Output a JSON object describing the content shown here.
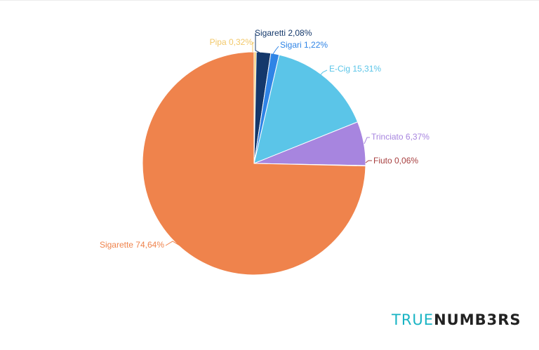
{
  "chart_data": {
    "type": "pie",
    "title": "",
    "start_angle_deg": 0,
    "direction": "clockwise",
    "slices": [
      {
        "label": "Pipa",
        "value": 0.32,
        "value_text": "0,32%",
        "color": "#f2c86a"
      },
      {
        "label": "Sigaretti",
        "value": 2.08,
        "value_text": "2,08%",
        "color": "#14386b"
      },
      {
        "label": "Sigari",
        "value": 1.22,
        "value_text": "1,22%",
        "color": "#2f84e6"
      },
      {
        "label": "E-Cig",
        "value": 15.31,
        "value_text": "15,31%",
        "color": "#5bc5e8"
      },
      {
        "label": "Trinciato",
        "value": 6.37,
        "value_text": "6,37%",
        "color": "#a785df"
      },
      {
        "label": "Fiuto",
        "value": 0.06,
        "value_text": "0,06%",
        "color": "#a73f3f"
      },
      {
        "label": "Sigarette",
        "value": 74.64,
        "value_text": "74,64%",
        "color": "#ef834c"
      }
    ]
  },
  "brand": {
    "part1": "TRUE",
    "part2": "NUMB3RS"
  }
}
